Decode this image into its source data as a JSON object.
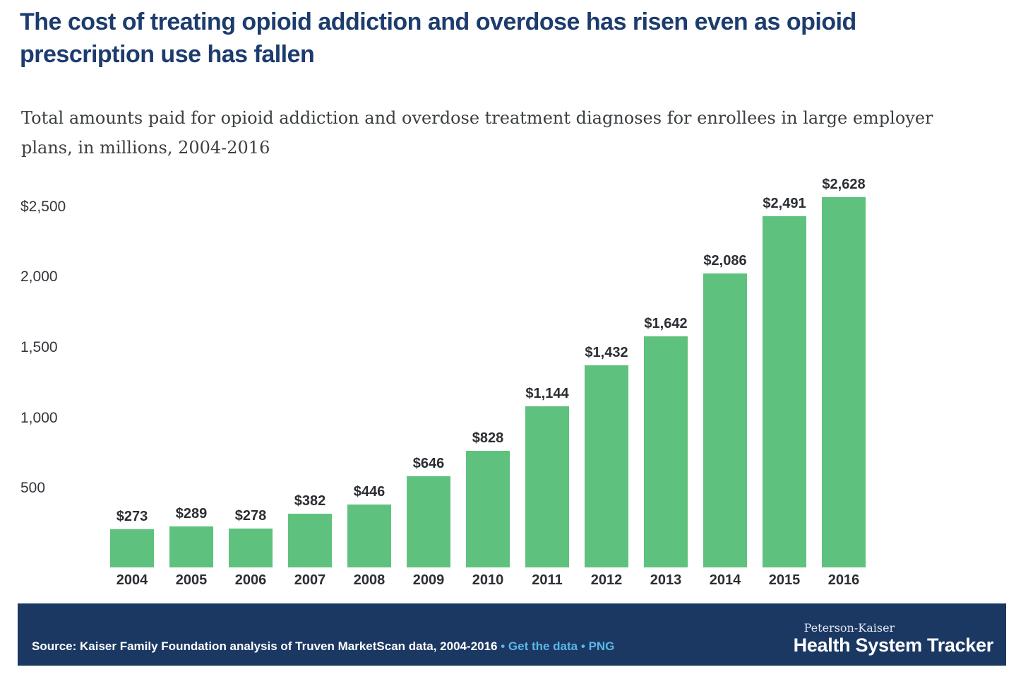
{
  "title": "The cost of treating opioid addiction and overdose has risen even as opioid prescription use has fallen",
  "subtitle": "Total amounts paid for opioid addiction and overdose treatment diagnoses for enrollees in large employer plans, in millions, 2004-2016",
  "chart_data": {
    "type": "bar",
    "title": "The cost of treating opioid addiction and overdose has risen even as opioid prescription use has fallen",
    "subtitle": "Total amounts paid for opioid addiction and overdose treatment diagnoses for enrollees in large employer plans, in millions, 2004-2016",
    "categories": [
      "2004",
      "2005",
      "2006",
      "2007",
      "2008",
      "2009",
      "2010",
      "2011",
      "2012",
      "2013",
      "2014",
      "2015",
      "2016"
    ],
    "values": [
      273,
      289,
      278,
      382,
      446,
      646,
      828,
      1144,
      1432,
      1642,
      2086,
      2491,
      2628
    ],
    "value_labels": [
      "$273",
      "$289",
      "$278",
      "$382",
      "$446",
      "$646",
      "$828",
      "$1,144",
      "$1,432",
      "$1,642",
      "$2,086",
      "$2,491",
      "$2,628"
    ],
    "y_ticks": [
      {
        "label": "$2,500",
        "value": 2500
      },
      {
        "label": "2,000",
        "value": 2000
      },
      {
        "label": "1,500",
        "value": 1500
      },
      {
        "label": "1,000",
        "value": 1000
      },
      {
        "label": "500",
        "value": 500
      }
    ],
    "xlabel": "",
    "ylabel": "",
    "ylim": [
      0,
      2700
    ],
    "grid": false,
    "legend": false,
    "bar_color": "#5fc17e"
  },
  "footer": {
    "source_text": "Source: Kaiser Family Foundation analysis of Truven MarketScan data, 2004-2016",
    "separator": "•",
    "links": [
      {
        "label": "Get the data"
      },
      {
        "label": "PNG"
      }
    ],
    "brand_top": "Peterson-Kaiser",
    "brand_bottom": "Health System Tracker",
    "bg_color": "#1b3863",
    "link_color": "#5ab7e8"
  }
}
